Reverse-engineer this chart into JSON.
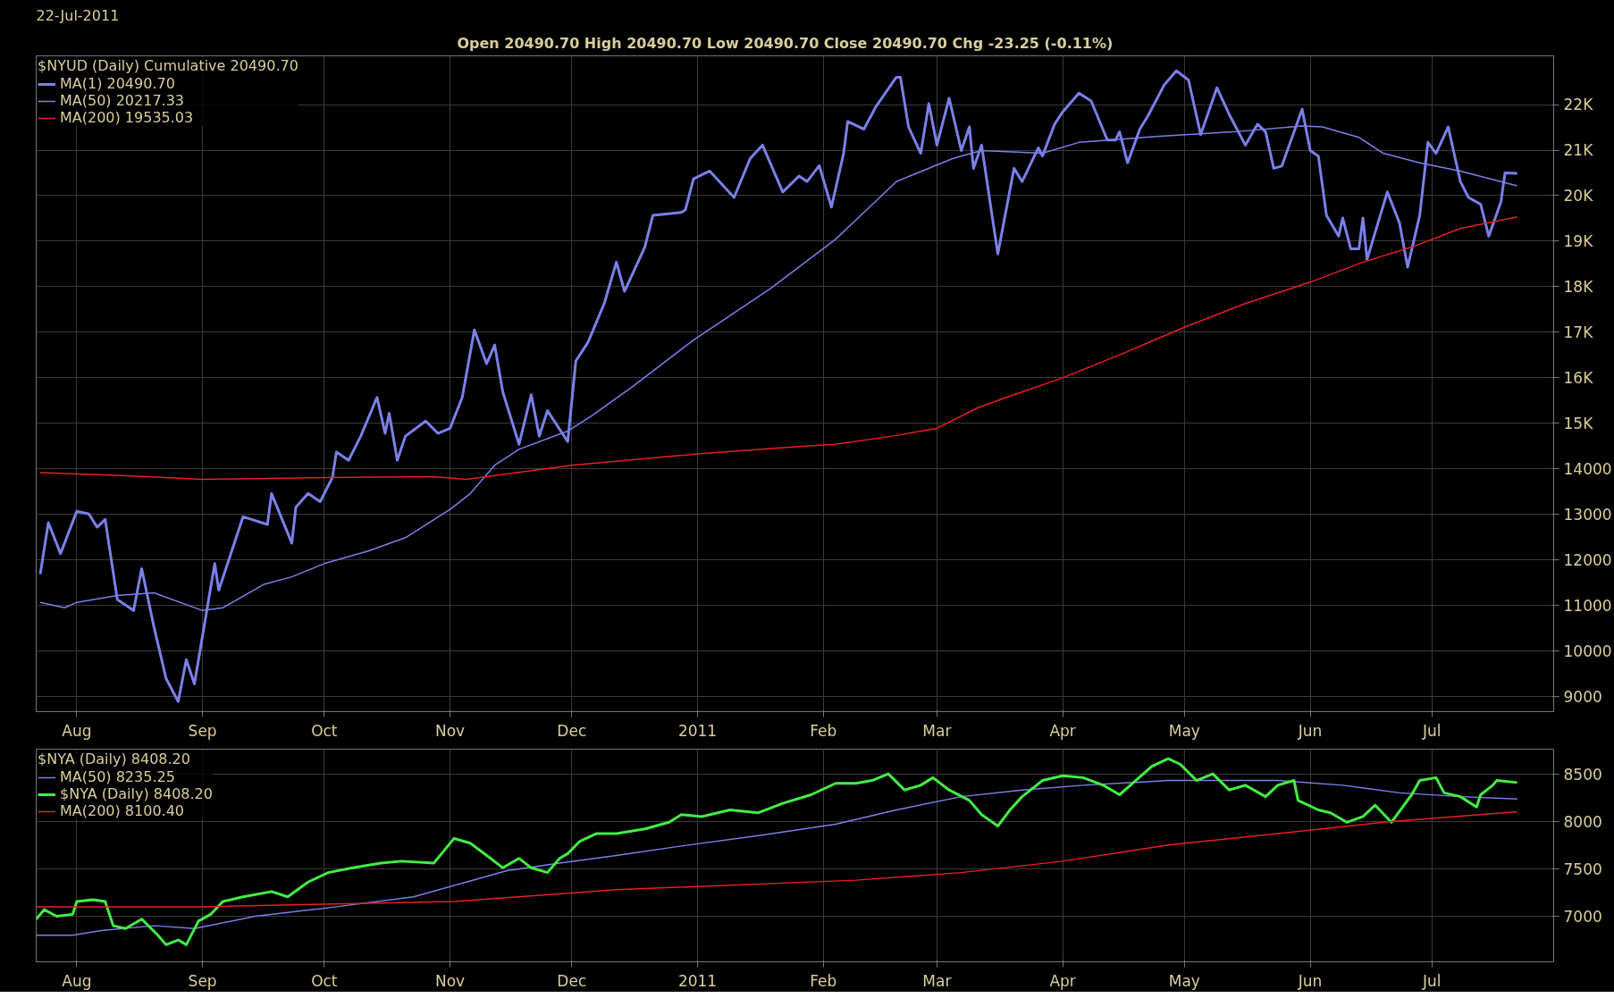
{
  "chart_data": [
    {
      "type": "line",
      "title": "22-Jul-2011",
      "subtitle": "Open 20490.70  High 20490.70  Low 20490.70  Close 20490.70  Chg -23.25 (-0.11%)",
      "legend_title": "$NYUD (Daily) Cumulative 20490.70",
      "legend": "top left",
      "grid": true,
      "xlim": [
        "2010-07-22",
        "2011-07-31"
      ],
      "xticks": [
        {
          "value": "2010-08-01",
          "label": "Aug"
        },
        {
          "value": "2010-09-01",
          "label": "Sep"
        },
        {
          "value": "2010-10-01",
          "label": "Oct"
        },
        {
          "value": "2010-11-01",
          "label": "Nov"
        },
        {
          "value": "2010-12-01",
          "label": "Dec"
        },
        {
          "value": "2011-01-01",
          "label": "2011"
        },
        {
          "value": "2011-02-01",
          "label": "Feb"
        },
        {
          "value": "2011-03-01",
          "label": "Mar"
        },
        {
          "value": "2011-04-01",
          "label": "Apr"
        },
        {
          "value": "2011-05-01",
          "label": "May"
        },
        {
          "value": "2011-06-01",
          "label": "Jun"
        },
        {
          "value": "2011-07-01",
          "label": "Jul"
        }
      ],
      "ylim": [
        8670,
        23070
      ],
      "yticks": [
        9000,
        10000,
        11000,
        12000,
        13000,
        14000,
        {
          "value": 15000,
          "label": "15K"
        },
        {
          "value": 16000,
          "label": "16K"
        },
        {
          "value": 17000,
          "label": "17K"
        },
        {
          "value": 18000,
          "label": "18K"
        },
        {
          "value": 19000,
          "label": "19K"
        },
        {
          "value": 20000,
          "label": "20K"
        },
        {
          "value": 21000,
          "label": "21K"
        },
        {
          "value": 22000,
          "label": "22K"
        }
      ],
      "series": [
        {
          "name": "MA(1) 20490.70",
          "color": "#7b80e8",
          "x": [
            "2010-07-23",
            "2010-07-25",
            "2010-07-28",
            "2010-08-01",
            "2010-08-04",
            "2010-08-06",
            "2010-08-08",
            "2010-08-11",
            "2010-08-15",
            "2010-08-17",
            "2010-08-20",
            "2010-08-23",
            "2010-08-26",
            "2010-08-28",
            "2010-08-30",
            "2010-09-04",
            "2010-09-05",
            "2010-09-11",
            "2010-09-17",
            "2010-09-18",
            "2010-09-23",
            "2010-09-24",
            "2010-09-27",
            "2010-09-30",
            "2010-10-03",
            "2010-10-04",
            "2010-10-07",
            "2010-10-10",
            "2010-10-14",
            "2010-10-16",
            "2010-10-17",
            "2010-10-19",
            "2010-10-21",
            "2010-10-26",
            "2010-10-29",
            "2010-11-01",
            "2010-11-04",
            "2010-11-07",
            "2010-11-10",
            "2010-11-12",
            "2010-11-14",
            "2010-11-18",
            "2010-11-21",
            "2010-11-23",
            "2010-11-25",
            "2010-11-30",
            "2010-12-02",
            "2010-12-05",
            "2010-12-09",
            "2010-12-12",
            "2010-12-14",
            "2010-12-19",
            "2010-12-21",
            "2010-12-28",
            "2010-12-29",
            "2010-12-31",
            "2011-01-04",
            "2011-01-10",
            "2011-01-14",
            "2011-01-17",
            "2011-01-22",
            "2011-01-26",
            "2011-01-28",
            "2011-01-31",
            "2011-02-03",
            "2011-02-06",
            "2011-02-07",
            "2011-02-11",
            "2011-02-14",
            "2011-02-19",
            "2011-02-20",
            "2011-02-22",
            "2011-02-25",
            "2011-02-27",
            "2011-03-01",
            "2011-03-04",
            "2011-03-07",
            "2011-03-09",
            "2011-03-10",
            "2011-03-12",
            "2011-03-16",
            "2011-03-20",
            "2011-03-22",
            "2011-03-26",
            "2011-03-27",
            "2011-03-30",
            "2011-04-01",
            "2011-04-05",
            "2011-04-08",
            "2011-04-12",
            "2011-04-14",
            "2011-04-15",
            "2011-04-17",
            "2011-04-20",
            "2011-04-22",
            "2011-04-26",
            "2011-04-29",
            "2011-05-02",
            "2011-05-05",
            "2011-05-09",
            "2011-05-12",
            "2011-05-16",
            "2011-05-19",
            "2011-05-21",
            "2011-05-23",
            "2011-05-25",
            "2011-05-30",
            "2011-06-01",
            "2011-06-03",
            "2011-06-05",
            "2011-06-08",
            "2011-06-09",
            "2011-06-11",
            "2011-06-13",
            "2011-06-14",
            "2011-06-15",
            "2011-06-20",
            "2011-06-23",
            "2011-06-25",
            "2011-06-28",
            "2011-06-30",
            "2011-07-02",
            "2011-07-05",
            "2011-07-08",
            "2011-07-10",
            "2011-07-13",
            "2011-07-15",
            "2011-07-18",
            "2011-07-19",
            "2011-07-22"
          ],
          "values": [
            11690,
            12820,
            12140,
            13070,
            13010,
            12720,
            12890,
            11130,
            10890,
            11810,
            10540,
            9400,
            8890,
            9810,
            9280,
            11920,
            11340,
            12950,
            12780,
            13460,
            12370,
            13160,
            13460,
            13280,
            13810,
            14370,
            14190,
            14720,
            15570,
            14780,
            15220,
            14190,
            14720,
            15050,
            14780,
            14890,
            15570,
            17050,
            16310,
            16720,
            15690,
            14540,
            15630,
            14720,
            15280,
            14600,
            16370,
            16780,
            17630,
            18540,
            17900,
            18870,
            19570,
            19630,
            19690,
            20370,
            20540,
            19960,
            20820,
            21110,
            20080,
            20430,
            20310,
            20660,
            19750,
            20930,
            21630,
            21460,
            21960,
            22600,
            22600,
            21510,
            20930,
            22020,
            21110,
            22140,
            20990,
            21510,
            20600,
            21110,
            18720,
            20600,
            20310,
            21050,
            20870,
            21570,
            21840,
            22250,
            22080,
            21220,
            21220,
            21400,
            20720,
            21460,
            21750,
            22430,
            22740,
            22540,
            21340,
            22370,
            21790,
            21110,
            21570,
            21400,
            20600,
            20650,
            21900,
            20990,
            20870,
            19570,
            19110,
            19510,
            18830,
            18830,
            19510,
            18600,
            20080,
            19400,
            18430,
            19570,
            21170,
            20930,
            21510,
            20310,
            19960,
            19810,
            19110,
            19860,
            20500,
            20490.7
          ]
        },
        {
          "name": "MA(50) 20217.33",
          "color": "#7b80e8",
          "x": [
            "2010-07-23",
            "2010-07-29",
            "2010-08-01",
            "2010-08-11",
            "2010-08-20",
            "2010-09-01",
            "2010-09-06",
            "2010-09-16",
            "2010-09-23",
            "2010-10-01",
            "2010-10-12",
            "2010-10-21",
            "2010-11-01",
            "2010-11-06",
            "2010-11-12",
            "2010-11-18",
            "2010-11-30",
            "2010-12-06",
            "2010-12-16",
            "2010-12-31",
            "2011-01-19",
            "2011-02-04",
            "2011-02-19",
            "2011-03-05",
            "2011-03-12",
            "2011-03-27",
            "2011-04-05",
            "2011-04-24",
            "2011-05-13",
            "2011-05-30",
            "2011-06-04",
            "2011-06-13",
            "2011-06-19",
            "2011-06-28",
            "2011-07-08",
            "2011-07-22"
          ],
          "values": [
            11070,
            10950,
            11070,
            11220,
            11280,
            10890,
            10950,
            11460,
            11630,
            11920,
            12200,
            12490,
            13110,
            13460,
            14080,
            14430,
            14830,
            15170,
            15810,
            16830,
            17960,
            19040,
            20310,
            20820,
            20990,
            20930,
            21170,
            21300,
            21400,
            21530,
            21510,
            21280,
            20930,
            20720,
            20540,
            20217.33
          ]
        },
        {
          "name": "MA(200) 19535.03",
          "color": "#e8201f",
          "x": [
            "2010-07-23",
            "2010-08-11",
            "2010-09-01",
            "2010-10-01",
            "2010-10-28",
            "2010-11-05",
            "2010-12-01",
            "2011-01-01",
            "2011-01-26",
            "2011-02-04",
            "2011-02-18",
            "2011-03-01",
            "2011-03-11",
            "2011-03-20",
            "2011-04-01",
            "2011-04-16",
            "2011-05-01",
            "2011-05-16",
            "2011-06-01",
            "2011-06-14",
            "2011-06-26",
            "2011-07-08",
            "2011-07-22"
          ],
          "values": [
            13920,
            13860,
            13770,
            13810,
            13830,
            13770,
            14080,
            14330,
            14490,
            14540,
            14720,
            14890,
            15340,
            15630,
            16000,
            16540,
            17110,
            17630,
            18100,
            18540,
            18870,
            19280,
            19535.03
          ]
        }
      ]
    },
    {
      "type": "line",
      "legend_title": "$NYA (Daily) 8408.20",
      "legend": "top left",
      "grid": true,
      "xlim": [
        "2010-07-22",
        "2011-07-31"
      ],
      "xticks": [
        {
          "value": "2010-08-01",
          "label": "Aug"
        },
        {
          "value": "2010-09-01",
          "label": "Sep"
        },
        {
          "value": "2010-10-01",
          "label": "Oct"
        },
        {
          "value": "2010-11-01",
          "label": "Nov"
        },
        {
          "value": "2010-12-01",
          "label": "Dec"
        },
        {
          "value": "2011-01-01",
          "label": "2011"
        },
        {
          "value": "2011-02-01",
          "label": "Feb"
        },
        {
          "value": "2011-03-01",
          "label": "Mar"
        },
        {
          "value": "2011-04-01",
          "label": "Apr"
        },
        {
          "value": "2011-05-01",
          "label": "May"
        },
        {
          "value": "2011-06-01",
          "label": "Jun"
        },
        {
          "value": "2011-07-01",
          "label": "Jul"
        }
      ],
      "ylim": [
        6520,
        8760
      ],
      "yticks": [
        7000,
        7500,
        8000,
        8500
      ],
      "series": [
        {
          "name": "MA(50) 8235.25",
          "color": "#7b80e8",
          "x": [
            "2010-07-22",
            "2010-07-31",
            "2010-08-07",
            "2010-08-20",
            "2010-08-30",
            "2010-09-14",
            "2010-10-04",
            "2010-10-23",
            "2010-11-05",
            "2010-11-15",
            "2010-11-28",
            "2010-12-12",
            "2010-12-28",
            "2011-01-16",
            "2011-02-04",
            "2011-02-19",
            "2011-03-07",
            "2011-03-22",
            "2011-04-06",
            "2011-04-27",
            "2011-05-24",
            "2011-06-09",
            "2011-06-23",
            "2011-07-08",
            "2011-07-22"
          ],
          "values": [
            6800,
            6800,
            6850,
            6900,
            6870,
            7000,
            7100,
            7205,
            7360,
            7480,
            7560,
            7640,
            7740,
            7850,
            7970,
            8120,
            8260,
            8330,
            8380,
            8430,
            8430,
            8380,
            8300,
            8260,
            8235.25
          ]
        },
        {
          "name": "$NYA (Daily) 8408.20",
          "color": "#44ee44",
          "x": [
            "2010-07-22",
            "2010-07-24",
            "2010-07-27",
            "2010-07-31",
            "2010-08-01",
            "2010-08-05",
            "2010-08-08",
            "2010-08-10",
            "2010-08-13",
            "2010-08-17",
            "2010-08-21",
            "2010-08-23",
            "2010-08-26",
            "2010-08-28",
            "2010-08-31",
            "2010-09-03",
            "2010-09-06",
            "2010-09-11",
            "2010-09-18",
            "2010-09-22",
            "2010-09-27",
            "2010-10-02",
            "2010-10-08",
            "2010-10-15",
            "2010-10-20",
            "2010-10-28",
            "2010-11-02",
            "2010-11-06",
            "2010-11-11",
            "2010-11-14",
            "2010-11-18",
            "2010-11-21",
            "2010-11-25",
            "2010-11-28",
            "2010-11-30",
            "2010-12-03",
            "2010-12-07",
            "2010-12-12",
            "2010-12-19",
            "2010-12-25",
            "2010-12-28",
            "2011-01-02",
            "2011-01-09",
            "2011-01-16",
            "2011-01-22",
            "2011-01-29",
            "2011-02-04",
            "2011-02-09",
            "2011-02-13",
            "2011-02-17",
            "2011-02-21",
            "2011-02-25",
            "2011-02-28",
            "2011-03-04",
            "2011-03-09",
            "2011-03-12",
            "2011-03-16",
            "2011-03-19",
            "2011-03-22",
            "2011-03-27",
            "2011-04-01",
            "2011-04-06",
            "2011-04-11",
            "2011-04-15",
            "2011-04-19",
            "2011-04-23",
            "2011-04-27",
            "2011-04-30",
            "2011-05-04",
            "2011-05-08",
            "2011-05-12",
            "2011-05-16",
            "2011-05-21",
            "2011-05-24",
            "2011-05-28",
            "2011-05-29",
            "2011-06-03",
            "2011-06-06",
            "2011-06-10",
            "2011-06-14",
            "2011-06-17",
            "2011-06-21",
            "2011-06-26",
            "2011-06-28",
            "2011-07-02",
            "2011-07-04",
            "2011-07-08",
            "2011-07-12",
            "2011-07-13",
            "2011-07-16",
            "2011-07-17",
            "2011-07-22"
          ],
          "values": [
            6970,
            7070,
            7000,
            7020,
            7155,
            7175,
            7155,
            6900,
            6870,
            6970,
            6800,
            6700,
            6750,
            6700,
            6950,
            7020,
            7155,
            7205,
            7260,
            7205,
            7360,
            7460,
            7510,
            7560,
            7580,
            7560,
            7820,
            7770,
            7610,
            7510,
            7610,
            7510,
            7460,
            7610,
            7660,
            7790,
            7870,
            7870,
            7920,
            7990,
            8070,
            8050,
            8120,
            8090,
            8190,
            8280,
            8400,
            8400,
            8430,
            8500,
            8330,
            8380,
            8460,
            8330,
            8220,
            8070,
            7950,
            8120,
            8260,
            8430,
            8480,
            8460,
            8380,
            8280,
            8430,
            8580,
            8660,
            8600,
            8430,
            8500,
            8330,
            8380,
            8260,
            8380,
            8430,
            8220,
            8120,
            8090,
            7990,
            8050,
            8170,
            7990,
            8280,
            8430,
            8460,
            8300,
            8260,
            8150,
            8280,
            8380,
            8430,
            8408.2
          ]
        },
        {
          "name": "MA(200) 8100.40",
          "color": "#e8201f",
          "x": [
            "2010-07-22",
            "2010-09-01",
            "2010-11-02",
            "2010-12-12",
            "2011-02-09",
            "2011-03-07",
            "2011-04-01",
            "2011-04-27",
            "2011-05-24",
            "2011-06-19",
            "2011-07-22"
          ],
          "values": [
            7100,
            7100,
            7155,
            7280,
            7380,
            7460,
            7580,
            7750,
            7870,
            7990,
            8100.4
          ]
        }
      ]
    }
  ]
}
